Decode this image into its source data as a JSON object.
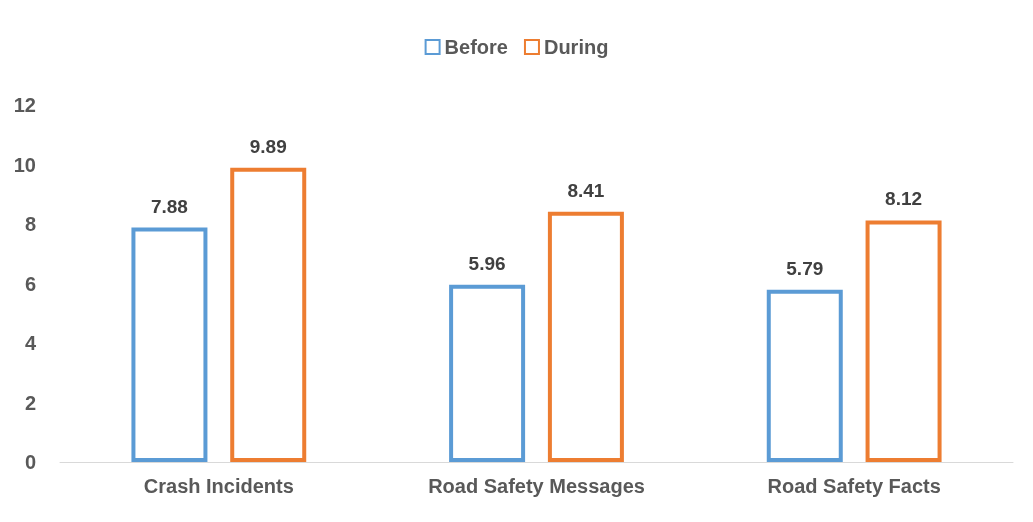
{
  "chart_data": {
    "type": "bar",
    "categories": [
      "Crash Incidents",
      "Road Safety Messages",
      "Road Safety Facts"
    ],
    "series": [
      {
        "name": "Before",
        "color": "#5b9bd5",
        "values": [
          7.88,
          5.96,
          5.79
        ]
      },
      {
        "name": "During",
        "color": "#ed7d31",
        "values": [
          9.89,
          8.41,
          8.12
        ]
      }
    ],
    "ylim": [
      0,
      12
    ],
    "yticks": [
      0,
      2,
      4,
      6,
      8,
      10,
      12
    ],
    "grid": false,
    "legend": "top",
    "data_labels": true
  }
}
